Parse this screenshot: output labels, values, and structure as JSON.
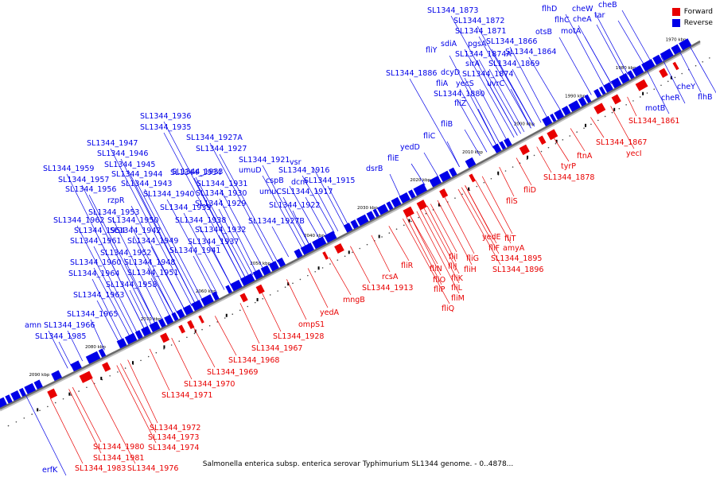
{
  "legend": {
    "forward": {
      "label": "Forward",
      "color": "#e80000"
    },
    "reverse": {
      "label": "Reverse",
      "color": "#0000e8"
    }
  },
  "caption": "Salmonella enterica subsp. enterica serovar Typhimurium SL1344 genome. - 0..4878...",
  "colors": {
    "forward": "#e80000",
    "reverse": "#0000e8",
    "backbone": "#6a6a6a",
    "tick_text": "#000000"
  },
  "ticks": [
    "2090 kbp",
    "2080 kbp",
    "2070 kbp",
    "2060 kbp",
    "2050 kbp",
    "2040 kbp",
    "2030 kbp",
    "2020 kbp",
    "2010 kbp",
    "2000 kbp",
    "1990 kbp",
    "1980 kbp",
    "1970 kbp"
  ],
  "labels": {
    "reverse": [
      "SL1344_1873",
      "SL1344_1872",
      "SL1344_1871",
      "sdiA",
      "pgsA",
      "SL1344_1866",
      "otsB",
      "SL1344_1874A",
      "SL1344_1864",
      "fliY",
      "sirA",
      "SL1344_1869",
      "dcyD",
      "SL1344_1874",
      "SL1344_1886",
      "fliA",
      "yecS",
      "uvrC",
      "SL1344_1880",
      "fliZ",
      "fliB",
      "fliC",
      "yedD",
      "fliE",
      "dsrB",
      "SL1344_1936",
      "SL1344_1935",
      "SL1344_1927A",
      "SL1344_1947",
      "SL1344_1927",
      "SL1344_1946",
      "SL1344_1921",
      "vsr",
      "SL1344_1945",
      "umuD",
      "SL1344_1959",
      "SL1344_1934",
      "SL1344_1916",
      "SL1344_1957",
      "SL1344_1944",
      "SL1344_1933",
      "cspB",
      "dcm",
      "SL1344_1915",
      "SL1344_1956",
      "SL1344_1943",
      "SL1344_1931",
      "umuC",
      "SL1344_1917",
      "rzpR",
      "SL1344_1940",
      "SL1344_1930",
      "SL1344_1953",
      "SL1344_1939",
      "SL1344_1929",
      "SL1344_1922",
      "SL1344_1962",
      "SL1344_1950",
      "SL1344_1938",
      "SL1344_1927B",
      "SL1344_1954",
      "SL1344_1942",
      "SL1344_1932",
      "SL1344_1961",
      "SL1344_1949",
      "SL1344_1937",
      "SL1344_1952",
      "SL1344_1941",
      "SL1344_1960",
      "SL1344_1948",
      "SL1344_1964",
      "SL1344_1951",
      "SL1344_1958",
      "SL1344_1963",
      "SL1344_1965",
      "amn",
      "SL1344_1966",
      "SL1344_1985",
      "erfK",
      "flhD",
      "cheW",
      "cheB",
      "flhC",
      "tar",
      "cheA",
      "motA",
      "motB",
      "cheR",
      "cheY",
      "flhB"
    ],
    "forward": [
      "SL1344_1861",
      "SL1344_1867",
      "yecI",
      "ftnA",
      "tyrP",
      "SL1344_1878",
      "fliD",
      "fliS",
      "fliT",
      "yedE",
      "amyA",
      "fliF",
      "SL1344_1895",
      "fliG",
      "SL1344_1896",
      "fliH",
      "fliI",
      "fliJ",
      "fliR",
      "fliK",
      "fliN",
      "fliO",
      "fliL",
      "fliP",
      "fliM",
      "rcsA",
      "SL1344_1913",
      "fliQ",
      "mngB",
      "yedA",
      "ompS1",
      "SL1344_1928",
      "SL1344_1967",
      "SL1344_1968",
      "SL1344_1969",
      "SL1344_1970",
      "SL1344_1971",
      "SL1344_1972",
      "SL1344_1973",
      "SL1344_1974",
      "SL1344_1980",
      "SL1344_1981",
      "SL1344_1983",
      "SL1344_1976"
    ]
  }
}
